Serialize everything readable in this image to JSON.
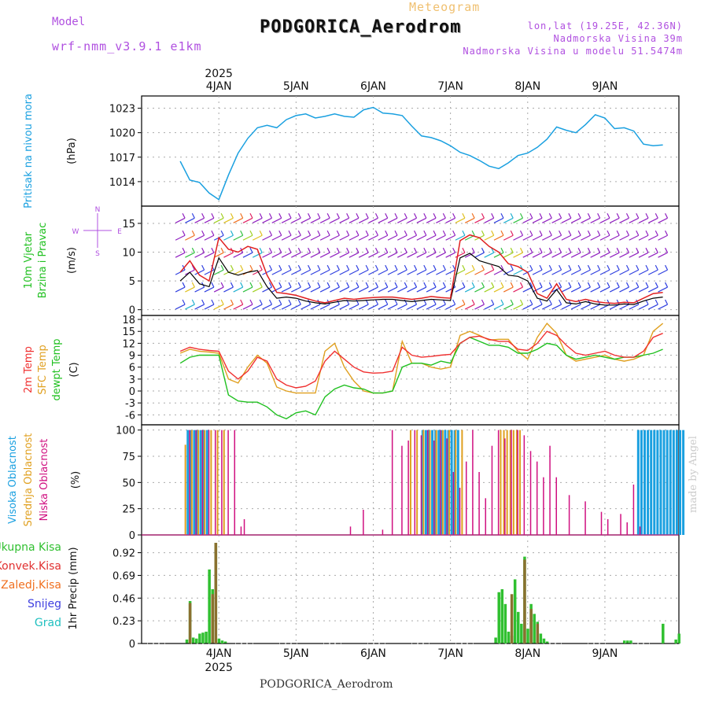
{
  "header": {
    "model_label": "Model",
    "model_name": "wrf-nmm_v3.9.1 e1km",
    "meteogram_label": "Meteogram",
    "station": "PODGORICA_Aerodrom",
    "lonlat": "lon,lat (19.25E, 42.36N)",
    "altitude": "Nadmorska Visina 39m",
    "model_altitude": "Nadmorska Visina u modelu 51.5474m",
    "footer_station": "PODGORICA_Aerodrom",
    "credit": "made by Angel",
    "year_top": "2025",
    "year_bottom": "2025"
  },
  "colors": {
    "pressure": "#1aa0e0",
    "wind_speed": "#000000",
    "wind_gust": "#e02020",
    "t2m": "#f03030",
    "tsfc": "#e0a020",
    "dewpt": "#20c020",
    "cloud_high": "#1aa0e0",
    "cloud_mid": "#e0a020",
    "cloud_low": "#d01080",
    "precip_total": "#30c030",
    "precip_conv": "#e03030",
    "precip_grid": "#f07020",
    "snow": "#4040e0",
    "hail": "#20c0c0",
    "grid": "#aaaaaa"
  },
  "chart_data": [
    {
      "type": "line",
      "panel": "pressure",
      "ylabel_left": "Pritisak na nivou mora",
      "ylabel_unit": "(hPa)",
      "ylim": [
        1011,
        1024.5
      ],
      "yticks": [
        "1014",
        "1017",
        "1020",
        "1023"
      ],
      "xticks": [
        "4JAN",
        "5JAN",
        "6JAN",
        "7JAN",
        "8JAN",
        "9JAN"
      ],
      "x_hours": [
        0,
        3,
        6,
        9,
        12,
        15,
        18,
        21,
        24,
        27,
        30,
        33,
        36,
        39,
        42,
        45,
        48,
        51,
        54,
        57,
        60,
        63,
        66,
        69,
        72,
        75,
        78,
        81,
        84,
        87,
        90,
        93,
        96,
        99,
        102,
        105,
        108,
        111,
        114,
        117,
        120,
        123,
        126,
        129,
        132,
        135,
        138,
        141,
        144,
        147,
        150
      ],
      "series": [
        {
          "values": [
            1016.5,
            1014.2,
            1013.9,
            1012.6,
            1011.8,
            1014.8,
            1017.5,
            1019.3,
            1020.6,
            1020.9,
            1020.6,
            1021.6,
            1022.1,
            1022.3,
            1021.8,
            1022.0,
            1022.3,
            1022.0,
            1021.9,
            1022.8,
            1023.1,
            1022.4,
            1022.3,
            1022.1,
            1020.8,
            1019.6,
            1019.4,
            1019.0,
            1018.4,
            1017.6,
            1017.2,
            1016.6,
            1015.9,
            1015.6,
            1016.3,
            1017.2,
            1017.5,
            1018.2,
            1019.2,
            1020.7,
            1020.3,
            1020.0,
            1021.0,
            1022.2,
            1021.8,
            1020.5,
            1020.6,
            1020.2,
            1018.6,
            1018.4,
            1018.5
          ]
        }
      ]
    },
    {
      "type": "line",
      "panel": "wind",
      "ylabel_left": "10m Vjetar",
      "ylabel_left2": "Brzina i Pravac",
      "ylabel_unit": "(m/s)",
      "compass": [
        "N",
        "W",
        "E",
        "S"
      ],
      "ylim": [
        -1,
        18
      ],
      "yticks": [
        "0",
        "5",
        "10",
        "15"
      ],
      "x_hours": [
        0,
        3,
        6,
        9,
        12,
        15,
        18,
        21,
        24,
        27,
        30,
        33,
        36,
        39,
        42,
        45,
        48,
        51,
        54,
        57,
        60,
        63,
        66,
        69,
        72,
        75,
        78,
        81,
        84,
        87,
        90,
        93,
        96,
        99,
        102,
        105,
        108,
        111,
        114,
        117,
        120,
        123,
        126,
        129,
        132,
        135,
        138,
        141,
        144,
        147,
        150
      ],
      "series": [
        {
          "name": "speed",
          "values": [
            5.0,
            6.5,
            4.5,
            4.0,
            9.0,
            6.5,
            6.0,
            6.5,
            6.8,
            4.0,
            2.0,
            2.2,
            2.0,
            1.5,
            1.2,
            1.0,
            1.3,
            1.6,
            1.5,
            1.6,
            1.7,
            1.8,
            1.8,
            1.6,
            1.4,
            1.6,
            1.8,
            1.7,
            1.6,
            9.0,
            9.8,
            8.5,
            8.0,
            7.5,
            6.0,
            5.8,
            5.0,
            2.0,
            1.5,
            3.5,
            1.2,
            1.0,
            1.4,
            1.0,
            0.8,
            0.8,
            1.0,
            0.9,
            1.5,
            2.0,
            2.2
          ]
        },
        {
          "name": "gust",
          "values": [
            6.5,
            8.5,
            6.0,
            5.0,
            12.5,
            10.5,
            10.0,
            11.0,
            10.5,
            6.0,
            3.0,
            2.8,
            2.5,
            2.0,
            1.5,
            1.2,
            1.6,
            2.0,
            1.8,
            2.0,
            2.1,
            2.2,
            2.2,
            2.0,
            1.8,
            2.0,
            2.3,
            2.1,
            2.0,
            12.0,
            13.0,
            12.5,
            11.0,
            10.0,
            8.0,
            7.5,
            6.5,
            2.8,
            2.0,
            4.5,
            1.8,
            1.4,
            1.8,
            1.4,
            1.2,
            1.1,
            1.3,
            1.2,
            2.0,
            2.8,
            3.0
          ]
        }
      ]
    },
    {
      "type": "line",
      "panel": "temperature",
      "ylabel_left": "2m Temp",
      "ylabel_left2": "SFC Temp",
      "ylabel_left3": "dewpt Temp",
      "ylabel_unit": "(C)",
      "ylim": [
        -8.5,
        19
      ],
      "yticks": [
        "-6",
        "-3",
        "0",
        "3",
        "6",
        "9",
        "12",
        "15",
        "18"
      ],
      "x_hours": [
        0,
        3,
        6,
        9,
        12,
        15,
        18,
        21,
        24,
        27,
        30,
        33,
        36,
        39,
        42,
        45,
        48,
        51,
        54,
        57,
        60,
        63,
        66,
        69,
        72,
        75,
        78,
        81,
        84,
        87,
        90,
        93,
        96,
        99,
        102,
        105,
        108,
        111,
        114,
        117,
        120,
        123,
        126,
        129,
        132,
        135,
        138,
        141,
        144,
        147,
        150
      ],
      "series": [
        {
          "name": "2m",
          "values": [
            10.0,
            11.0,
            10.5,
            10.2,
            10.0,
            5.0,
            3.0,
            5.0,
            8.5,
            7.5,
            3.0,
            1.5,
            0.8,
            1.2,
            2.5,
            7.5,
            10.0,
            8.0,
            6.0,
            4.8,
            4.5,
            4.6,
            5.0,
            11.0,
            9.0,
            8.5,
            8.7,
            9.0,
            9.2,
            12.0,
            13.5,
            13.8,
            13.0,
            12.5,
            12.5,
            10.5,
            10.2,
            12.0,
            15.0,
            14.0,
            11.5,
            9.5,
            9.0,
            9.5,
            10.0,
            9.0,
            8.5,
            8.5,
            10.0,
            13.5,
            14.5
          ]
        },
        {
          "name": "sfc",
          "values": [
            9.5,
            10.5,
            10.0,
            9.8,
            9.5,
            3.0,
            2.0,
            6.0,
            9.0,
            7.0,
            1.0,
            0.0,
            -0.5,
            -0.5,
            -0.5,
            10.0,
            12.0,
            6.0,
            2.5,
            0.0,
            -0.5,
            -0.5,
            0.0,
            12.5,
            7.0,
            7.0,
            6.0,
            5.5,
            6.0,
            14.0,
            15.0,
            14.0,
            12.8,
            13.0,
            13.0,
            10.0,
            8.0,
            13.5,
            17.0,
            14.5,
            9.0,
            7.5,
            8.0,
            8.5,
            9.0,
            8.0,
            7.5,
            8.0,
            9.0,
            15.0,
            17.0
          ]
        },
        {
          "name": "dewpt",
          "values": [
            7.0,
            8.5,
            9.0,
            9.0,
            9.0,
            -1.0,
            -2.5,
            -2.8,
            -2.8,
            -4.0,
            -6.0,
            -7.0,
            -5.5,
            -5.0,
            -6.0,
            -1.5,
            0.5,
            1.5,
            0.8,
            0.5,
            -0.5,
            -0.5,
            0.0,
            6.0,
            7.0,
            7.0,
            6.5,
            7.5,
            7.0,
            12.0,
            13.5,
            12.5,
            11.5,
            11.5,
            11.0,
            9.5,
            9.5,
            10.5,
            12.0,
            11.5,
            9.0,
            8.0,
            8.5,
            9.0,
            8.5,
            8.0,
            8.5,
            8.5,
            9.0,
            9.5,
            10.5
          ]
        }
      ]
    },
    {
      "type": "bar",
      "panel": "clouds",
      "ylabel_left": "Visoka Oblacnost",
      "ylabel_left2": "Srednja Oblacnost",
      "ylabel_left3": "Niska Oblacnost",
      "ylabel_unit": "(%)",
      "ylim": [
        0,
        105
      ],
      "yticks": [
        "0",
        "25",
        "50",
        "75",
        "100"
      ],
      "series": [
        {
          "name": "high",
          "hours": [
            2,
            3,
            4,
            5,
            6,
            7,
            8,
            75,
            76,
            77,
            78,
            79,
            80,
            81,
            82,
            83,
            84,
            85,
            86,
            142,
            143,
            144,
            145,
            146,
            147,
            148,
            149,
            150,
            151,
            152,
            153,
            154,
            155,
            156
          ],
          "values": [
            100,
            100,
            100,
            100,
            100,
            100,
            100,
            100,
            100,
            100,
            100,
            100,
            100,
            100,
            100,
            100,
            100,
            100,
            100,
            100,
            100,
            100,
            100,
            100,
            100,
            100,
            100,
            100,
            100,
            100,
            100,
            100,
            100,
            100
          ]
        },
        {
          "name": "mid",
          "hours": [
            1,
            3,
            5,
            7,
            9,
            11,
            13,
            71,
            73,
            75,
            77,
            79,
            81,
            83,
            85,
            87,
            99,
            100,
            101,
            102,
            103,
            104,
            105
          ],
          "values": [
            86,
            100,
            100,
            100,
            100,
            100,
            100,
            100,
            100,
            100,
            100,
            100,
            100,
            100,
            100,
            100,
            100,
            100,
            100,
            100,
            100,
            100,
            100
          ]
        },
        {
          "name": "low",
          "hours": [
            2,
            4,
            6,
            8,
            10,
            12,
            14,
            16,
            18,
            19,
            52,
            56,
            62,
            65,
            68,
            70,
            72,
            74,
            76,
            78,
            80,
            82,
            84,
            86,
            88,
            90,
            92,
            94,
            96,
            98,
            100,
            102,
            104,
            106,
            108,
            110,
            112,
            114,
            116,
            120,
            125,
            130,
            132,
            136,
            138,
            140,
            142
          ],
          "values": [
            100,
            100,
            100,
            100,
            100,
            100,
            100,
            100,
            8,
            15,
            8,
            24,
            5,
            100,
            85,
            90,
            100,
            95,
            100,
            90,
            100,
            92,
            60,
            45,
            70,
            100,
            60,
            35,
            85,
            100,
            92,
            100,
            100,
            95,
            80,
            70,
            55,
            85,
            55,
            38,
            32,
            22,
            15,
            20,
            12,
            48,
            8
          ]
        }
      ]
    },
    {
      "type": "bar",
      "panel": "precip",
      "legend": [
        "Ukupna Kisa",
        "Konvek.Kisa",
        "Zaledj.Kisa",
        "Snijeg",
        "Grad"
      ],
      "ylabel_unit": "1hr Precip (mm)",
      "ylim": [
        0,
        1.1
      ],
      "yticks": [
        "0",
        "0.23",
        "0.46",
        "0.69",
        "0.92"
      ],
      "series": [
        {
          "name": "Ukupna Kisa",
          "hours": [
            2,
            3,
            4,
            5,
            6,
            7,
            8,
            9,
            10,
            11,
            12,
            13,
            14,
            98,
            99,
            100,
            101,
            102,
            103,
            104,
            105,
            106,
            107,
            108,
            109,
            110,
            111,
            112,
            113,
            114,
            138,
            139,
            140,
            150,
            154,
            155
          ],
          "values": [
            0.04,
            0.43,
            0.06,
            0.05,
            0.1,
            0.11,
            0.12,
            0.75,
            0.55,
            1.02,
            0.05,
            0.03,
            0.02,
            0.06,
            0.52,
            0.55,
            0.4,
            0.12,
            0.08,
            0.65,
            0.32,
            0.2,
            0.88,
            0.15,
            0.4,
            0.3,
            0.22,
            0.1,
            0.05,
            0.02,
            0.03,
            0.03,
            0.03,
            0.2,
            0.04,
            0.1
          ]
        },
        {
          "name": "Konvek.Kisa",
          "hours": [
            3,
            10,
            11,
            103,
            107,
            109,
            111
          ],
          "values": [
            0.41,
            0.5,
            1.02,
            0.5,
            0.85,
            0.35,
            0.2
          ]
        }
      ]
    }
  ]
}
